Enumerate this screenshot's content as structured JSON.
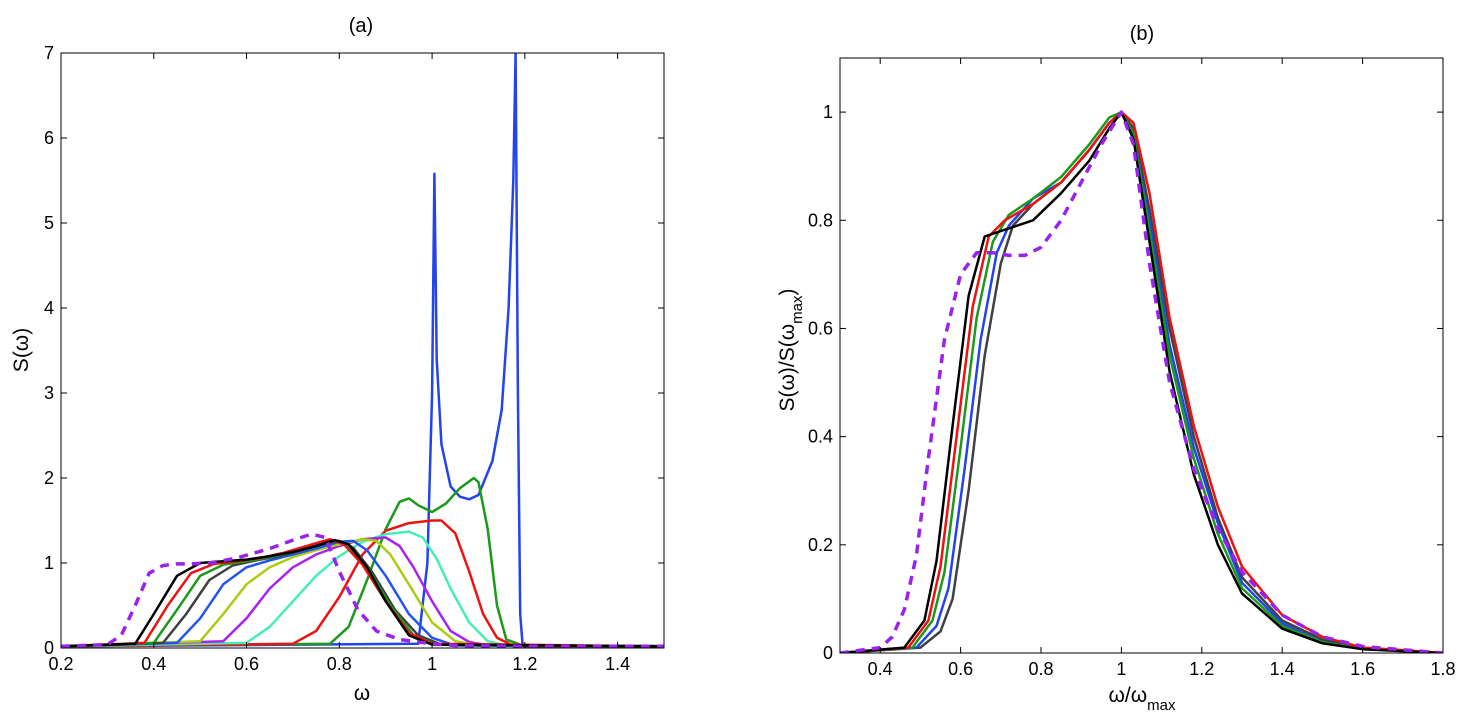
{
  "chart_data": [
    {
      "type": "line",
      "title": "(a)",
      "xlabel": "ω",
      "ylabel": "S(ω)",
      "xlim": [
        0.2,
        1.5
      ],
      "ylim": [
        0,
        7
      ],
      "xticks": [
        "0.2",
        "0.4",
        "0.6",
        "0.8",
        "1",
        "1.2",
        "1.4"
      ],
      "yticks": [
        "0",
        "1",
        "2",
        "3",
        "4",
        "5",
        "6",
        "7"
      ],
      "series": [
        {
          "name": "blue-peaked",
          "color": "#2244ee",
          "dashed": false,
          "x": [
            0.2,
            0.97,
            0.99,
            1.0,
            1.005,
            1.01,
            1.02,
            1.04,
            1.06,
            1.08,
            1.1,
            1.13,
            1.15,
            1.165,
            1.175,
            1.18,
            1.185,
            1.19,
            1.195,
            1.2,
            1.5
          ],
          "y": [
            0.02,
            0.05,
            1.0,
            3.0,
            5.58,
            3.4,
            2.4,
            1.9,
            1.78,
            1.75,
            1.8,
            2.2,
            2.8,
            4.0,
            5.5,
            7.0,
            3.0,
            0.4,
            0.05,
            0.02,
            0.02
          ]
        },
        {
          "name": "green-double",
          "color": "#1a9a1a",
          "dashed": false,
          "x": [
            0.2,
            0.78,
            0.82,
            0.86,
            0.9,
            0.93,
            0.95,
            0.97,
            1.0,
            1.03,
            1.06,
            1.09,
            1.1,
            1.12,
            1.14,
            1.16,
            1.2,
            1.5
          ],
          "y": [
            0.02,
            0.05,
            0.25,
            0.8,
            1.4,
            1.72,
            1.76,
            1.68,
            1.6,
            1.7,
            1.88,
            2.0,
            1.95,
            1.4,
            0.5,
            0.1,
            0.02,
            0.02
          ]
        },
        {
          "name": "red",
          "color": "#ee1111",
          "dashed": false,
          "x": [
            0.2,
            0.7,
            0.75,
            0.8,
            0.85,
            0.9,
            0.95,
            1.0,
            1.02,
            1.05,
            1.08,
            1.11,
            1.14,
            1.17,
            1.2,
            1.5
          ],
          "y": [
            0.02,
            0.05,
            0.2,
            0.6,
            1.1,
            1.38,
            1.47,
            1.5,
            1.5,
            1.35,
            0.9,
            0.4,
            0.12,
            0.04,
            0.02,
            0.02
          ]
        },
        {
          "name": "aqua",
          "color": "#44eebb",
          "dashed": false,
          "x": [
            0.2,
            0.6,
            0.65,
            0.7,
            0.75,
            0.8,
            0.85,
            0.9,
            0.95,
            0.98,
            1.01,
            1.04,
            1.08,
            1.12,
            1.16,
            1.5
          ],
          "y": [
            0.02,
            0.06,
            0.25,
            0.55,
            0.85,
            1.08,
            1.25,
            1.34,
            1.37,
            1.3,
            1.05,
            0.7,
            0.3,
            0.08,
            0.03,
            0.02
          ]
        },
        {
          "name": "purple",
          "color": "#aa22ee",
          "dashed": false,
          "x": [
            0.2,
            0.55,
            0.6,
            0.65,
            0.7,
            0.75,
            0.8,
            0.85,
            0.9,
            0.93,
            0.96,
            1.0,
            1.04,
            1.08,
            1.12,
            1.5
          ],
          "y": [
            0.02,
            0.08,
            0.35,
            0.7,
            0.95,
            1.1,
            1.2,
            1.28,
            1.3,
            1.2,
            0.95,
            0.55,
            0.2,
            0.07,
            0.03,
            0.02
          ]
        },
        {
          "name": "lime",
          "color": "#aacc11",
          "dashed": false,
          "x": [
            0.2,
            0.5,
            0.55,
            0.6,
            0.65,
            0.7,
            0.75,
            0.8,
            0.85,
            0.88,
            0.91,
            0.95,
            1.0,
            1.05,
            1.1,
            1.5
          ],
          "y": [
            0.02,
            0.08,
            0.4,
            0.75,
            0.95,
            1.07,
            1.15,
            1.22,
            1.28,
            1.26,
            1.1,
            0.75,
            0.3,
            0.08,
            0.03,
            0.02
          ]
        },
        {
          "name": "blue",
          "color": "#2255ee",
          "dashed": false,
          "x": [
            0.2,
            0.45,
            0.5,
            0.55,
            0.6,
            0.65,
            0.7,
            0.75,
            0.8,
            0.83,
            0.86,
            0.9,
            0.95,
            1.0,
            1.05,
            1.5
          ],
          "y": [
            0.02,
            0.06,
            0.35,
            0.75,
            0.95,
            1.03,
            1.1,
            1.17,
            1.25,
            1.26,
            1.15,
            0.85,
            0.4,
            0.12,
            0.03,
            0.02
          ]
        },
        {
          "name": "dark-gray",
          "color": "#404040",
          "dashed": false,
          "x": [
            0.2,
            0.42,
            0.47,
            0.52,
            0.57,
            0.62,
            0.67,
            0.72,
            0.77,
            0.8,
            0.83,
            0.87,
            0.92,
            0.97,
            1.02,
            1.5
          ],
          "y": [
            0.02,
            0.06,
            0.4,
            0.8,
            0.97,
            1.03,
            1.08,
            1.15,
            1.23,
            1.26,
            1.18,
            0.9,
            0.45,
            0.15,
            0.04,
            0.02
          ]
        },
        {
          "name": "green",
          "color": "#1a9a1a",
          "dashed": false,
          "x": [
            0.2,
            0.4,
            0.45,
            0.5,
            0.55,
            0.6,
            0.65,
            0.7,
            0.75,
            0.79,
            0.82,
            0.86,
            0.91,
            0.96,
            1.01,
            1.5
          ],
          "y": [
            0.02,
            0.06,
            0.45,
            0.85,
            0.98,
            1.02,
            1.07,
            1.13,
            1.22,
            1.27,
            1.2,
            0.95,
            0.5,
            0.15,
            0.04,
            0.02
          ]
        },
        {
          "name": "red-2",
          "color": "#ee1111",
          "dashed": false,
          "x": [
            0.2,
            0.38,
            0.43,
            0.48,
            0.53,
            0.58,
            0.63,
            0.68,
            0.73,
            0.78,
            0.81,
            0.85,
            0.9,
            0.95,
            1.0,
            1.5
          ],
          "y": [
            0.02,
            0.06,
            0.5,
            0.88,
            0.99,
            1.02,
            1.06,
            1.12,
            1.2,
            1.28,
            1.22,
            0.98,
            0.55,
            0.18,
            0.05,
            0.02
          ]
        },
        {
          "name": "black",
          "color": "#000000",
          "dashed": false,
          "x": [
            0.2,
            0.36,
            0.4,
            0.45,
            0.5,
            0.55,
            0.6,
            0.65,
            0.7,
            0.75,
            0.79,
            0.82,
            0.86,
            0.9,
            0.95,
            1.0,
            1.5
          ],
          "y": [
            0.02,
            0.05,
            0.4,
            0.85,
            1.0,
            1.02,
            1.04,
            1.08,
            1.13,
            1.2,
            1.27,
            1.22,
            0.95,
            0.55,
            0.15,
            0.04,
            0.02
          ]
        },
        {
          "name": "purple-dashed",
          "color": "#9922ee",
          "dashed": true,
          "x": [
            0.2,
            0.3,
            0.33,
            0.36,
            0.39,
            0.42,
            0.45,
            0.48,
            0.52,
            0.58,
            0.65,
            0.7,
            0.74,
            0.77,
            0.8,
            0.84,
            0.88,
            0.93,
            1.0,
            1.05,
            1.2,
            1.5
          ],
          "y": [
            0.02,
            0.04,
            0.15,
            0.5,
            0.88,
            0.97,
            0.99,
            0.99,
            1.0,
            1.06,
            1.17,
            1.27,
            1.34,
            1.3,
            0.9,
            0.45,
            0.2,
            0.1,
            0.05,
            0.03,
            0.02,
            0.02
          ]
        }
      ]
    },
    {
      "type": "line",
      "title": "(b)",
      "xlabel": "ω/ω",
      "xlabel_sub": "max",
      "ylabel": "S(ω)/S(ω",
      "ylabel_sub": "max",
      "ylabel_tail": ")",
      "xlim": [
        0.3,
        1.8
      ],
      "ylim": [
        0,
        1.1
      ],
      "xticks": [
        "0.4",
        "0.6",
        "0.8",
        "1",
        "1.2",
        "1.4",
        "1.6",
        "1.8"
      ],
      "yticks": [
        "0",
        "0.2",
        "0.4",
        "0.6",
        "0.8",
        "1"
      ],
      "series": [
        {
          "name": "dark-gray",
          "color": "#404040",
          "dashed": false,
          "x": [
            0.3,
            0.5,
            0.55,
            0.58,
            0.62,
            0.66,
            0.7,
            0.73,
            0.78,
            0.85,
            0.92,
            0.97,
            1.0,
            1.03,
            1.07,
            1.12,
            1.18,
            1.24,
            1.3,
            1.4,
            1.5,
            1.6,
            1.8
          ],
          "y": [
            0.0,
            0.01,
            0.04,
            0.1,
            0.3,
            0.55,
            0.72,
            0.79,
            0.83,
            0.87,
            0.93,
            0.98,
            1.0,
            0.97,
            0.82,
            0.6,
            0.4,
            0.25,
            0.14,
            0.06,
            0.025,
            0.01,
            0.0
          ]
        },
        {
          "name": "blue",
          "color": "#2244ee",
          "dashed": false,
          "x": [
            0.3,
            0.49,
            0.54,
            0.57,
            0.61,
            0.65,
            0.69,
            0.72,
            0.78,
            0.85,
            0.92,
            0.97,
            1.0,
            1.03,
            1.07,
            1.12,
            1.18,
            1.24,
            1.3,
            1.4,
            1.5,
            1.6,
            1.8
          ],
          "y": [
            0.0,
            0.01,
            0.05,
            0.12,
            0.34,
            0.58,
            0.74,
            0.79,
            0.84,
            0.87,
            0.93,
            0.98,
            1.0,
            0.96,
            0.8,
            0.57,
            0.38,
            0.24,
            0.13,
            0.055,
            0.02,
            0.008,
            0.0
          ]
        },
        {
          "name": "green",
          "color": "#1a9a1a",
          "dashed": false,
          "x": [
            0.3,
            0.48,
            0.53,
            0.56,
            0.6,
            0.64,
            0.68,
            0.72,
            0.78,
            0.85,
            0.92,
            0.97,
            1.0,
            1.03,
            1.07,
            1.12,
            1.18,
            1.24,
            1.3,
            1.4,
            1.5,
            1.6,
            1.8
          ],
          "y": [
            0.0,
            0.01,
            0.06,
            0.15,
            0.38,
            0.62,
            0.76,
            0.81,
            0.84,
            0.88,
            0.94,
            0.99,
            1.0,
            0.96,
            0.78,
            0.55,
            0.36,
            0.22,
            0.12,
            0.05,
            0.02,
            0.008,
            0.0
          ]
        },
        {
          "name": "red",
          "color": "#ee1111",
          "dashed": false,
          "x": [
            0.3,
            0.47,
            0.52,
            0.55,
            0.59,
            0.63,
            0.67,
            0.71,
            0.78,
            0.85,
            0.92,
            0.97,
            1.0,
            1.03,
            1.07,
            1.12,
            1.18,
            1.24,
            1.3,
            1.4,
            1.5,
            1.6,
            1.8
          ],
          "y": [
            0.0,
            0.01,
            0.06,
            0.16,
            0.4,
            0.64,
            0.77,
            0.8,
            0.83,
            0.87,
            0.93,
            0.98,
            1.0,
            0.98,
            0.85,
            0.62,
            0.42,
            0.27,
            0.16,
            0.07,
            0.03,
            0.01,
            0.0
          ]
        },
        {
          "name": "black",
          "color": "#000000",
          "dashed": false,
          "x": [
            0.3,
            0.46,
            0.51,
            0.54,
            0.58,
            0.62,
            0.66,
            0.7,
            0.74,
            0.78,
            0.85,
            0.92,
            0.97,
            1.0,
            1.03,
            1.07,
            1.12,
            1.18,
            1.24,
            1.3,
            1.4,
            1.5,
            1.6,
            1.8
          ],
          "y": [
            0.0,
            0.01,
            0.06,
            0.17,
            0.42,
            0.66,
            0.77,
            0.78,
            0.79,
            0.8,
            0.85,
            0.91,
            0.97,
            1.0,
            0.95,
            0.76,
            0.52,
            0.33,
            0.2,
            0.11,
            0.045,
            0.018,
            0.007,
            0.0
          ]
        },
        {
          "name": "purple-dashed",
          "color": "#9922ee",
          "dashed": true,
          "x": [
            0.3,
            0.4,
            0.43,
            0.46,
            0.49,
            0.52,
            0.56,
            0.6,
            0.64,
            0.68,
            0.72,
            0.76,
            0.8,
            0.85,
            0.9,
            0.95,
            1.0,
            1.03,
            1.07,
            1.12,
            1.18,
            1.24,
            1.3,
            1.4,
            1.5,
            1.6,
            1.8
          ],
          "y": [
            0.0,
            0.01,
            0.03,
            0.08,
            0.18,
            0.36,
            0.58,
            0.7,
            0.74,
            0.74,
            0.735,
            0.735,
            0.75,
            0.8,
            0.87,
            0.94,
            1.0,
            0.94,
            0.72,
            0.5,
            0.34,
            0.23,
            0.15,
            0.07,
            0.03,
            0.012,
            0.0
          ]
        }
      ]
    }
  ]
}
